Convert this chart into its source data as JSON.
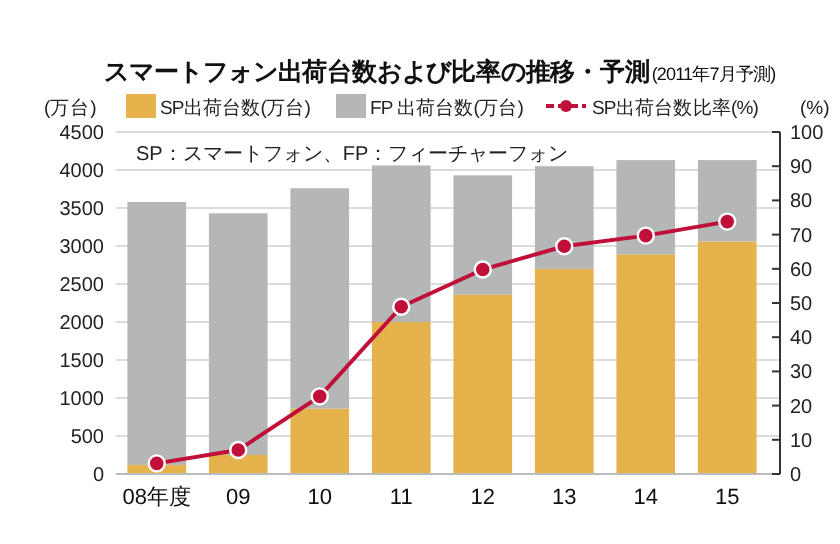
{
  "chart_data": {
    "type": "bar",
    "title": "スマートフォン出荷台数および比率の推移・予測",
    "subtitle": "(2011年7月予測)",
    "ylabel": "(万台)",
    "y2label": "(%)",
    "annotations": [
      "SP：スマートフォン、FP：フィーチャーフォン"
    ],
    "categories": [
      "08年度",
      "09",
      "10",
      "11",
      "12",
      "13",
      "14",
      "15"
    ],
    "stacked": true,
    "series": [
      {
        "name": "SP出荷台数(万台)",
        "color": "#e6b24c",
        "values": [
          120,
          250,
          860,
          2000,
          2360,
          2700,
          2890,
          3060
        ]
      },
      {
        "name": "FP 出荷台数(万台)",
        "color": "#b4b7b5",
        "values": [
          3460,
          3180,
          2900,
          2060,
          1570,
          1350,
          1240,
          1070
        ]
      },
      {
        "name": "SP出荷台数比率(%)",
        "type": "line",
        "axis": "y2",
        "color": "#c0103a",
        "marker": "circle",
        "values": [
          3.1,
          7,
          22.7,
          48.9,
          59.8,
          66.6,
          69.7,
          73.8
        ]
      }
    ],
    "ylim": [
      0,
      4500
    ],
    "yticks": [
      0,
      500,
      1000,
      1500,
      2000,
      2500,
      3000,
      3500,
      4000,
      4500
    ],
    "y2lim": [
      0,
      100
    ],
    "y2ticks": [
      0,
      10,
      20,
      30,
      40,
      50,
      60,
      70,
      80,
      90,
      100
    ],
    "grid": "y",
    "legend": "top"
  }
}
